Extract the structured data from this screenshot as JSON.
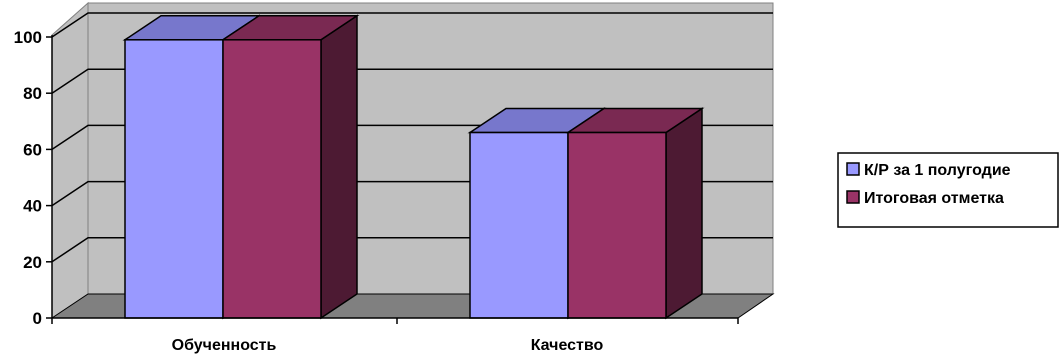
{
  "chart_data": {
    "type": "bar",
    "categories": [
      "Обученность",
      "Качество"
    ],
    "series": [
      {
        "name": "К/Р за 1 полугодие",
        "values": [
          99,
          66
        ]
      },
      {
        "name": "Итоговая отметка",
        "values": [
          99,
          66
        ]
      }
    ],
    "title": "",
    "xlabel": "",
    "ylabel": "",
    "ylim": [
      0,
      100
    ],
    "y_ticks": [
      "0",
      "20",
      "40",
      "60",
      "80",
      "100"
    ],
    "grid": true,
    "three_d": true,
    "legend_position": "right",
    "colors": {
      "series_fronts": [
        "#9999ff",
        "#993366"
      ],
      "series_tops": [
        "#7777cc",
        "#7a2952"
      ],
      "series_sides": [
        "#8080d5",
        "#4d1a33"
      ],
      "back_wall": "#c0c0c0",
      "floor": "#808080",
      "grid_line": "#000000"
    }
  }
}
